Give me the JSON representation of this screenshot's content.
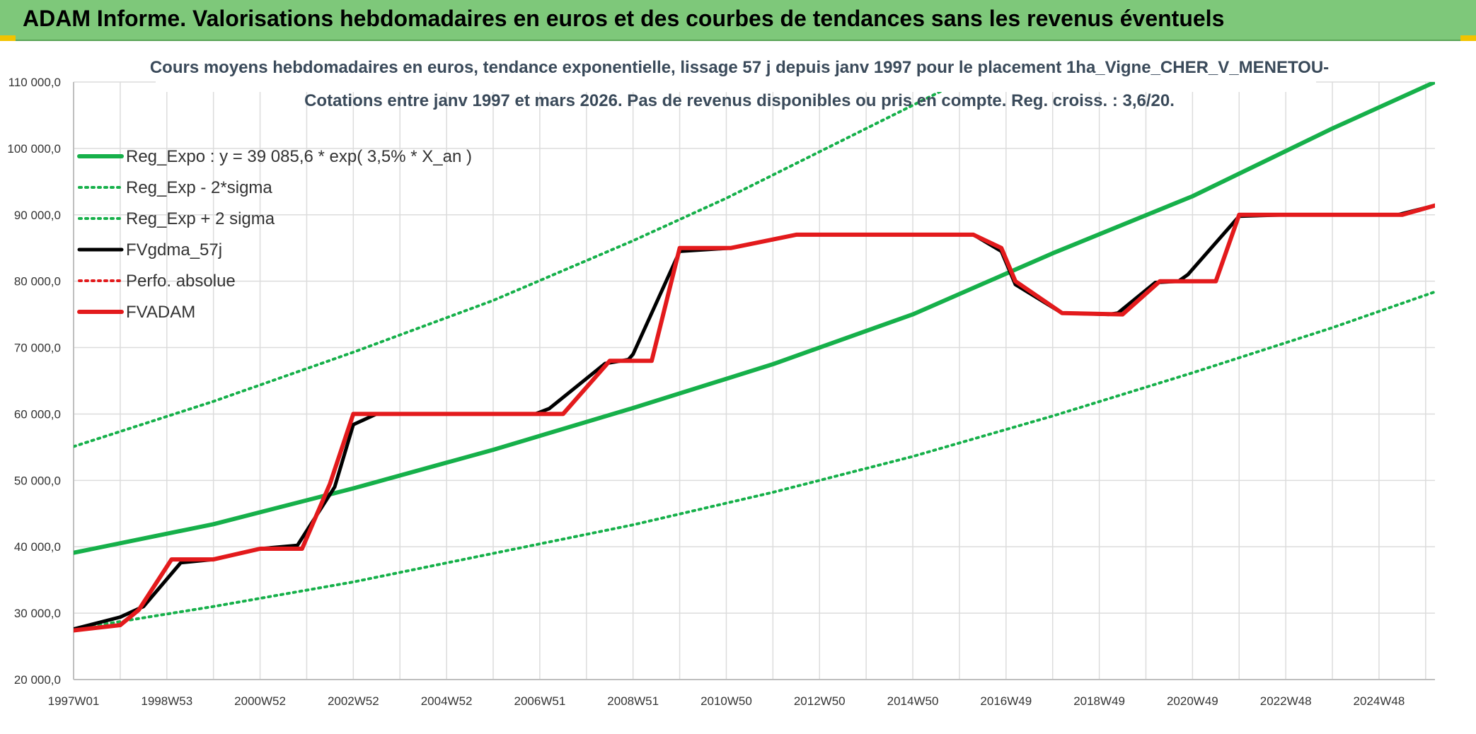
{
  "header": {
    "title": "ADAM Informe. Valorisations hebdomadaires en euros et des courbes de tendances sans les revenus éventuels"
  },
  "colors": {
    "header_bg": "#7ec87a",
    "green": "#16b04a",
    "black": "#000000",
    "red": "#e31a1c",
    "grid": "#dcdcdc"
  },
  "chart_data": {
    "type": "line",
    "subtitle_lines": [
      "Cours moyens hebdomadaires en euros, tendance exponentielle, lissage 57 j depuis janv 1997 pour le placement 1ha_Vigne_CHER_V_MENETOU-",
      "Cotations entre janv 1997 et mars 2026. Pas de revenus disponibles ou pris en compte. Reg. croiss. : 3,6/20."
    ],
    "ylim": [
      20000,
      110000
    ],
    "xlim": [
      1997.0,
      2026.2
    ],
    "y_ticks": [
      {
        "value": 20000,
        "label": "20 000,0"
      },
      {
        "value": 30000,
        "label": "30 000,0"
      },
      {
        "value": 40000,
        "label": "40 000,0"
      },
      {
        "value": 50000,
        "label": "50 000,0"
      },
      {
        "value": 60000,
        "label": "60 000,0"
      },
      {
        "value": 70000,
        "label": "70 000,0"
      },
      {
        "value": 80000,
        "label": "80 000,0"
      },
      {
        "value": 90000,
        "label": "90 000,0"
      },
      {
        "value": 100000,
        "label": "100 000,0"
      },
      {
        "value": 110000,
        "label": "110 000,0"
      }
    ],
    "x_ticks": [
      {
        "value": 1997.0,
        "label": "1997W01"
      },
      {
        "value": 1999.0,
        "label": "1998W53"
      },
      {
        "value": 2001.0,
        "label": "2000W52"
      },
      {
        "value": 2003.0,
        "label": "2002W52"
      },
      {
        "value": 2005.0,
        "label": "2004W52"
      },
      {
        "value": 2007.0,
        "label": "2006W51"
      },
      {
        "value": 2009.0,
        "label": "2008W51"
      },
      {
        "value": 2011.0,
        "label": "2010W50"
      },
      {
        "value": 2013.0,
        "label": "2012W50"
      },
      {
        "value": 2015.0,
        "label": "2014W50"
      },
      {
        "value": 2017.0,
        "label": "2016W49"
      },
      {
        "value": 2019.0,
        "label": "2018W49"
      },
      {
        "value": 2021.0,
        "label": "2020W49"
      },
      {
        "value": 2023.0,
        "label": "2022W48"
      },
      {
        "value": 2025.0,
        "label": "2024W48"
      }
    ],
    "legend": {
      "position": "left"
    },
    "series": [
      {
        "name": "Reg_Expo : y = 39 085,6 * exp( 3,5% *  X_an )",
        "style": "thick-solid",
        "color": "#16b04a",
        "x": [
          1997.0,
          2000.0,
          2003.0,
          2006.0,
          2009.0,
          2012.0,
          2015.0,
          2018.0,
          2021.0,
          2024.0,
          2026.2
        ],
        "y": [
          39100,
          43400,
          48800,
          54600,
          60900,
          67500,
          75000,
          84200,
          92800,
          103000,
          110000
        ]
      },
      {
        "name": "Reg_Exp - 2*sigma",
        "style": "dotted",
        "color": "#16b04a",
        "x": [
          1997.0,
          2000.0,
          2003.0,
          2006.0,
          2009.0,
          2012.0,
          2015.0,
          2018.0,
          2021.0,
          2024.0,
          2026.2
        ],
        "y": [
          27600,
          31000,
          34700,
          39000,
          43300,
          48200,
          53600,
          59700,
          66200,
          73000,
          78400
        ]
      },
      {
        "name": "Reg_Exp + 2 sigma",
        "style": "dotted",
        "color": "#16b04a",
        "x": [
          1997.0,
          2000.0,
          2003.0,
          2006.0,
          2009.0,
          2011.0,
          2013.0,
          2015.0,
          2016.0
        ],
        "y": [
          55100,
          61900,
          69300,
          77100,
          86100,
          92500,
          99500,
          106500,
          110000
        ]
      },
      {
        "name": "FVgdma_57j",
        "style": "solid",
        "color": "#000000",
        "x": [
          1997.0,
          1998.0,
          1998.5,
          1999.3,
          2000.0,
          2001.0,
          2001.8,
          2002.6,
          2003.0,
          2003.5,
          2006.9,
          2007.2,
          2008.4,
          2008.9,
          2009.0,
          2010.0,
          2011.1,
          2012.5,
          2016.3,
          2016.9,
          2017.2,
          2018.2,
          2019.2,
          2019.4,
          2020.2,
          2020.7,
          2020.9,
          2022.0,
          2023.0,
          2025.4,
          2026.2
        ],
        "y": [
          27600,
          29400,
          31000,
          37600,
          38100,
          39700,
          40200,
          49000,
          58400,
          60000,
          60000,
          60800,
          67600,
          68200,
          69000,
          84500,
          85000,
          87000,
          87000,
          84500,
          79500,
          75200,
          75000,
          75200,
          79800,
          80000,
          81000,
          89800,
          90000,
          90000,
          91400
        ]
      },
      {
        "name": "Perfo. absolue",
        "style": "dotted",
        "color": "#e31a1c",
        "x": [],
        "y": []
      },
      {
        "name": "FVADAM",
        "style": "thick-solid",
        "color": "#e31a1c",
        "x": [
          1997.0,
          1998.0,
          1998.4,
          1999.1,
          2000.0,
          2001.0,
          2001.9,
          2002.5,
          2003.0,
          2003.5,
          2007.0,
          2007.5,
          2008.5,
          2008.9,
          2009.4,
          2010.0,
          2011.1,
          2012.5,
          2016.3,
          2016.9,
          2017.2,
          2018.2,
          2019.5,
          2020.3,
          2020.8,
          2021.5,
          2022.0,
          2023.0,
          2025.5,
          2026.2
        ],
        "y": [
          27400,
          28200,
          30500,
          38100,
          38100,
          39700,
          39700,
          49500,
          60000,
          60000,
          60000,
          60000,
          68000,
          68000,
          68000,
          85000,
          85000,
          87000,
          87000,
          85000,
          80000,
          75200,
          75000,
          80000,
          80000,
          80000,
          90000,
          90000,
          90000,
          91400
        ]
      }
    ]
  }
}
